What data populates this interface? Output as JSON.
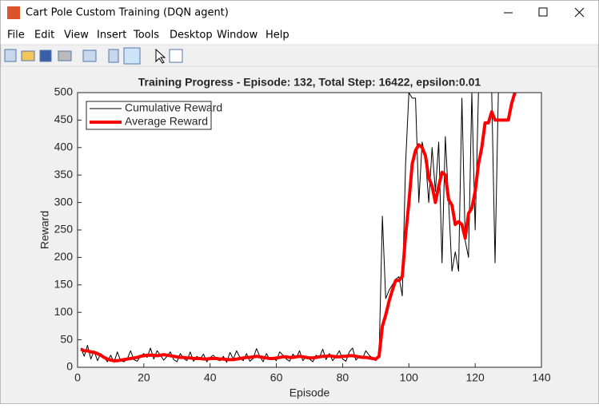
{
  "window": {
    "title": "Cart Pole Custom Training (DQN agent)",
    "menu": [
      "File",
      "Edit",
      "View",
      "Insert",
      "Tools",
      "Desktop",
      "Window",
      "Help"
    ]
  },
  "chart_data": {
    "type": "line",
    "title": "Training Progress - Episode: 132, Total Step: 16422, epsilon:0.01",
    "x_label": "Episode",
    "y_label": "Reward",
    "x": [
      1,
      2,
      3,
      4,
      5,
      6,
      7,
      8,
      9,
      10,
      11,
      12,
      13,
      14,
      15,
      16,
      17,
      18,
      19,
      20,
      21,
      22,
      23,
      24,
      25,
      26,
      27,
      28,
      29,
      30,
      31,
      32,
      33,
      34,
      35,
      36,
      37,
      38,
      39,
      40,
      41,
      42,
      43,
      44,
      45,
      46,
      47,
      48,
      49,
      50,
      51,
      52,
      53,
      54,
      55,
      56,
      57,
      58,
      59,
      60,
      61,
      62,
      63,
      64,
      65,
      66,
      67,
      68,
      69,
      70,
      71,
      72,
      73,
      74,
      75,
      76,
      77,
      78,
      79,
      80,
      81,
      82,
      83,
      84,
      85,
      86,
      87,
      88,
      89,
      90,
      91,
      92,
      93,
      94,
      95,
      96,
      97,
      98,
      99,
      100,
      101,
      102,
      103,
      104,
      105,
      106,
      107,
      108,
      109,
      110,
      111,
      112,
      113,
      114,
      115,
      116,
      117,
      118,
      119,
      120,
      121,
      122,
      123,
      124,
      125,
      126,
      127,
      128,
      129,
      130,
      131,
      132
    ],
    "series": [
      {
        "name": "Cumulative Reward",
        "color": "#000000",
        "width": 1,
        "values": [
          35,
          20,
          40,
          15,
          30,
          12,
          25,
          18,
          10,
          22,
          9,
          28,
          12,
          10,
          15,
          30,
          14,
          11,
          20,
          25,
          18,
          35,
          15,
          30,
          22,
          13,
          20,
          28,
          14,
          10,
          25,
          16,
          12,
          28,
          11,
          20,
          15,
          24,
          10,
          18,
          22,
          14,
          12,
          20,
          9,
          27,
          15,
          30,
          18,
          12,
          25,
          11,
          16,
          34,
          20,
          10,
          25,
          14,
          18,
          12,
          28,
          22,
          15,
          11,
          24,
          17,
          30,
          12,
          20,
          15,
          10,
          22,
          18,
          33,
          14,
          25,
          12,
          20,
          30,
          15,
          11,
          28,
          35,
          13,
          20,
          16,
          30,
          22,
          17,
          12,
          20,
          275,
          125,
          140,
          150,
          160,
          165,
          130,
          370,
          500,
          490,
          490,
          300,
          410,
          380,
          300,
          400,
          320,
          410,
          190,
          420,
          300,
          175,
          210,
          175,
          490,
          230,
          200,
          500,
          250,
          500,
          500,
          500,
          500,
          500,
          190,
          500,
          500,
          500,
          500,
          500,
          500
        ]
      },
      {
        "name": "Average Reward",
        "color": "#ff0000",
        "width": 4,
        "values": [
          33,
          30,
          30,
          28,
          27,
          25,
          22,
          18,
          15,
          13,
          12,
          12,
          13,
          14,
          15,
          16,
          17,
          18,
          20,
          21,
          22,
          22,
          22,
          21,
          22,
          23,
          22,
          21,
          20,
          19,
          18,
          18,
          17,
          17,
          16,
          16,
          16,
          15,
          15,
          16,
          16,
          16,
          15,
          15,
          14,
          14,
          14,
          15,
          16,
          17,
          18,
          18,
          19,
          20,
          19,
          18,
          17,
          16,
          16,
          17,
          18,
          19,
          19,
          18,
          18,
          19,
          20,
          19,
          18,
          17,
          17,
          18,
          19,
          20,
          20,
          21,
          20,
          19,
          19,
          20,
          20,
          21,
          21,
          20,
          19,
          18,
          18,
          17,
          16,
          15,
          20,
          75,
          95,
          120,
          140,
          158,
          158,
          165,
          240,
          300,
          370,
          395,
          405,
          400,
          385,
          345,
          330,
          300,
          330,
          355,
          350,
          305,
          295,
          260,
          265,
          260,
          235,
          280,
          290,
          320,
          370,
          400,
          445,
          445,
          465,
          450,
          450,
          450,
          450,
          450,
          480,
          500
        ]
      }
    ],
    "xlim": [
      0,
      140
    ],
    "xticks": [
      0,
      20,
      40,
      60,
      80,
      100,
      120,
      140
    ],
    "ylim": [
      0,
      500
    ],
    "yticks": [
      0,
      50,
      100,
      150,
      200,
      250,
      300,
      350,
      400,
      450,
      500
    ],
    "grid": false,
    "legend": "upper left"
  }
}
